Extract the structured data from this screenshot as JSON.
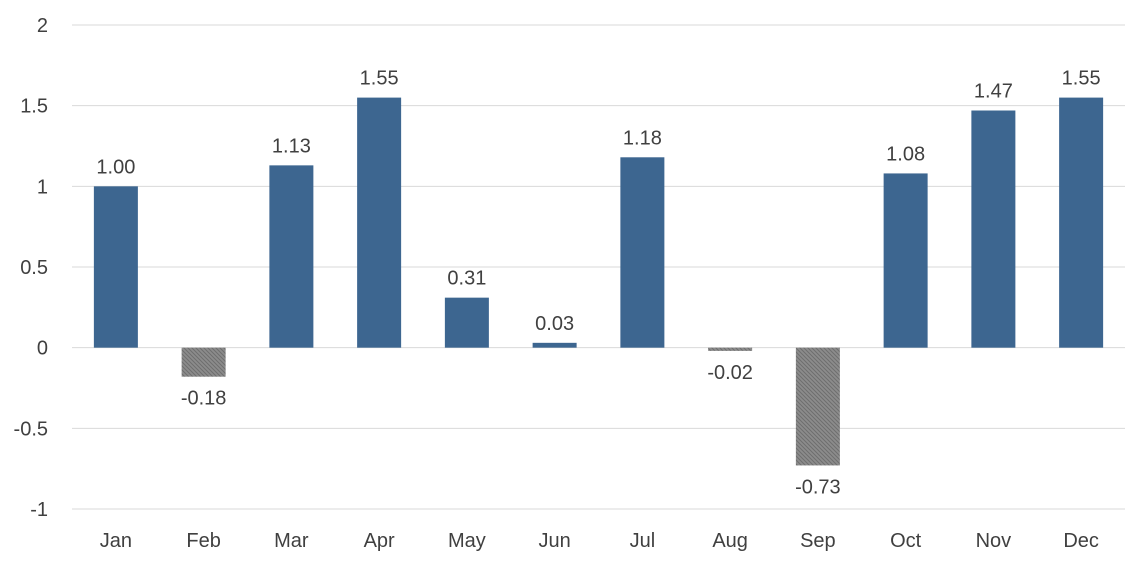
{
  "chart_data": {
    "type": "bar",
    "title": "",
    "xlabel": "",
    "ylabel": "",
    "categories": [
      "Jan",
      "Feb",
      "Mar",
      "Apr",
      "May",
      "Jun",
      "Jul",
      "Aug",
      "Sep",
      "Oct",
      "Nov",
      "Dec"
    ],
    "values": [
      1.0,
      -0.18,
      1.13,
      1.55,
      0.31,
      0.03,
      1.18,
      -0.02,
      -0.73,
      1.08,
      1.47,
      1.55
    ],
    "value_labels": [
      "1.00",
      "-0.18",
      "1.13",
      "1.55",
      "0.31",
      "0.03",
      "1.18",
      "-0.02",
      "-0.73",
      "1.08",
      "1.47",
      "1.55"
    ],
    "ylim": [
      -1,
      2
    ],
    "yticks": [
      "-1",
      "-0.5",
      "0",
      "0.5",
      "1",
      "1.5",
      "2"
    ],
    "ytick_values": [
      -1,
      -0.5,
      0,
      0.5,
      1,
      1.5,
      2
    ],
    "grid": true,
    "legend": "none",
    "colors": {
      "positive": "#3d6690",
      "negative": "#7f7f7f",
      "grid": "#d9d9d9",
      "text": "#404040"
    }
  }
}
